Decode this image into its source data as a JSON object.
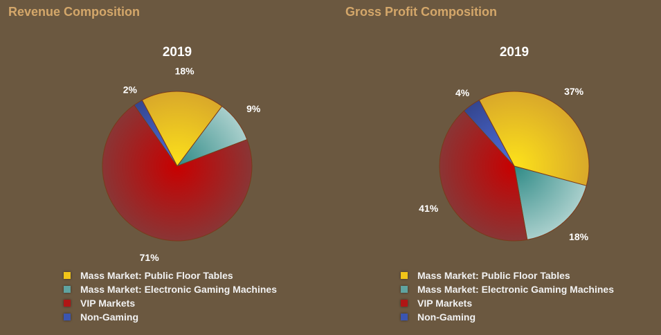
{
  "chart_data": [
    {
      "type": "pie",
      "title": "Revenue Composition",
      "subtitle": "2019",
      "categories": [
        "Mass Market: Public Floor Tables",
        "Mass Market: Electronic Gaming Machines",
        "VIP Markets",
        "Non-Gaming"
      ],
      "values": [
        18,
        9,
        71,
        2
      ],
      "labels": [
        "18%",
        "9%",
        "71%",
        "2%"
      ],
      "legend": "bottom"
    },
    {
      "type": "pie",
      "title": "Gross Profit Composition",
      "subtitle": "2019",
      "categories": [
        "Mass Market: Public Floor Tables",
        "Mass Market: Electronic Gaming Machines",
        "VIP Markets",
        "Non-Gaming"
      ],
      "values": [
        37,
        18,
        41,
        4
      ],
      "labels": [
        "37%",
        "18%",
        "41%",
        "4%"
      ],
      "legend": "bottom"
    }
  ],
  "colors": [
    "#f0c419",
    "#5fa3a0",
    "#b01515",
    "#3b55b0"
  ]
}
